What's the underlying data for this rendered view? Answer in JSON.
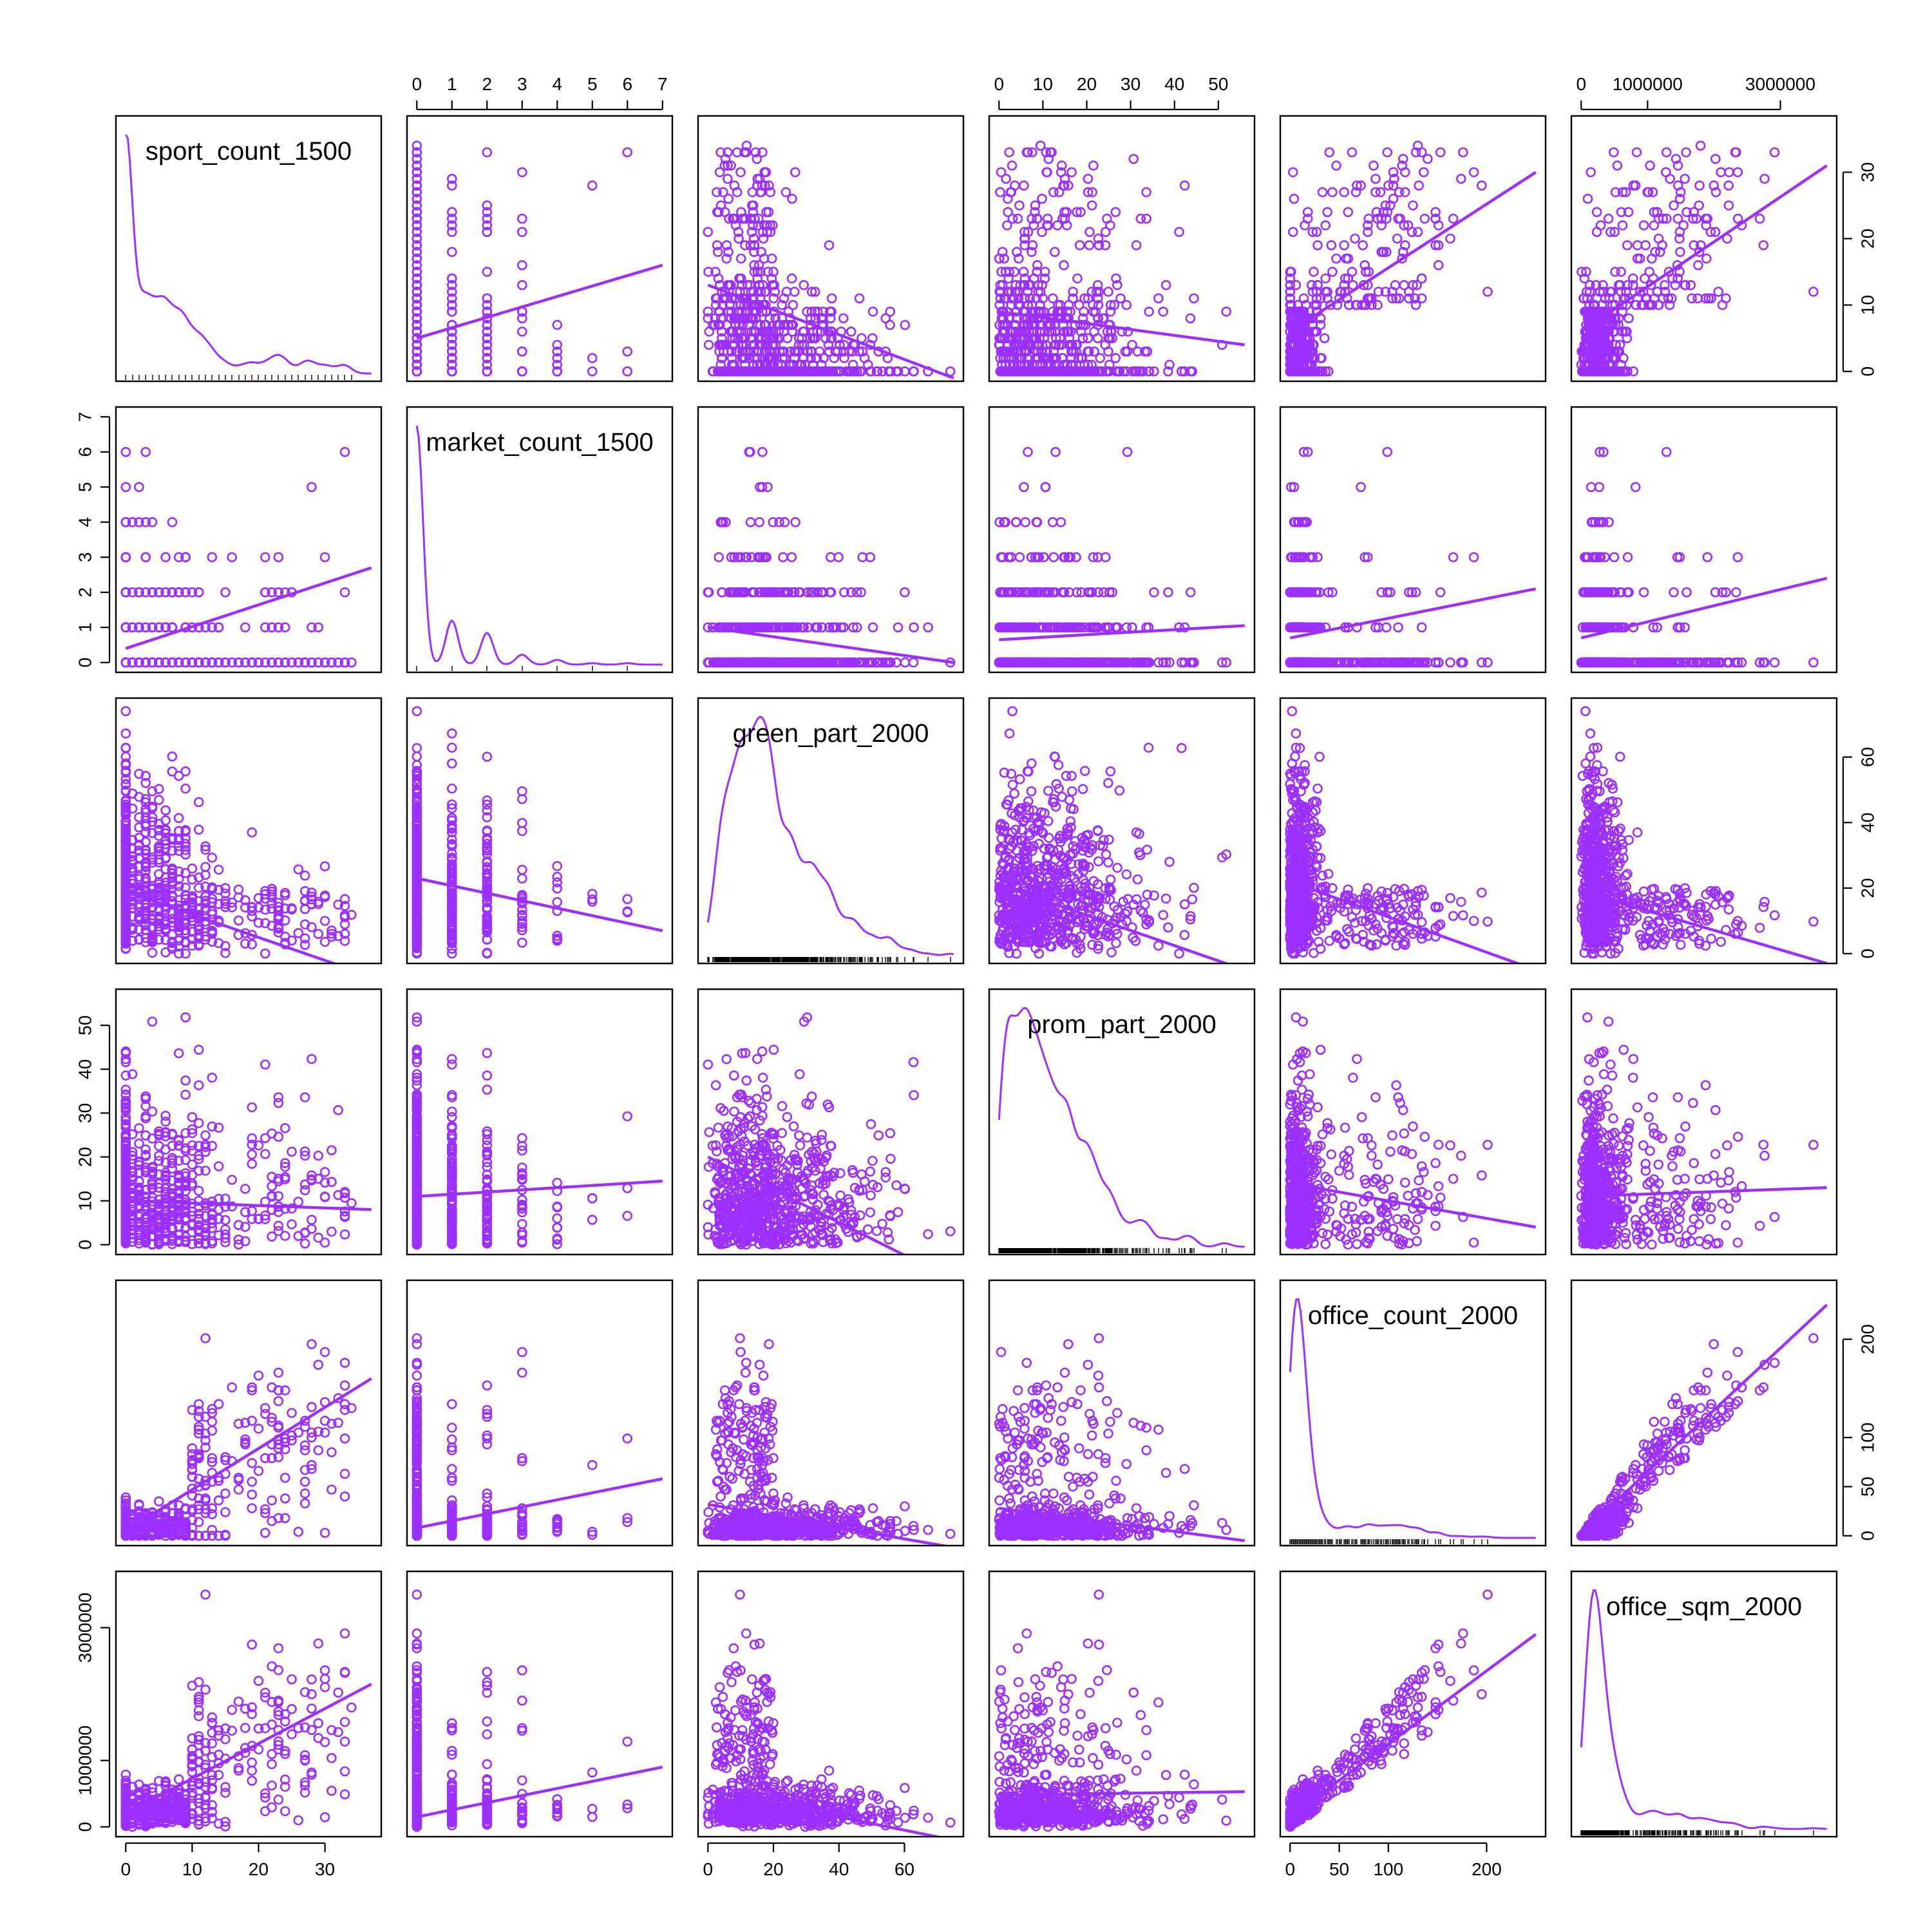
{
  "chart_data": {
    "type": "scatter-matrix",
    "point_color": "#9B30FF",
    "variables": [
      {
        "label": "sport_count_1500",
        "lim": [
          0,
          37
        ],
        "ticks": [
          "0",
          "10",
          "20",
          "30"
        ],
        "tick_values": [
          0,
          10,
          20,
          30
        ]
      },
      {
        "label": "market_count_1500",
        "lim": [
          0,
          7
        ],
        "ticks": [
          "0",
          "1",
          "2",
          "3",
          "4",
          "5",
          "6",
          "7"
        ],
        "tick_values": [
          0,
          1,
          2,
          3,
          4,
          5,
          6,
          7
        ]
      },
      {
        "label": "green_part_2000",
        "lim": [
          0,
          75
        ],
        "ticks": [
          "0",
          "20",
          "40",
          "60"
        ],
        "tick_values": [
          0,
          20,
          40,
          60
        ]
      },
      {
        "label": "prom_part_2000",
        "lim": [
          0,
          56
        ],
        "ticks": [
          "0",
          "10",
          "20",
          "30",
          "40",
          "50"
        ],
        "tick_values": [
          0,
          10,
          20,
          30,
          40,
          50
        ]
      },
      {
        "label": "office_count_2000",
        "lim": [
          0,
          250
        ],
        "ticks": [
          "0",
          "50",
          "100",
          "200"
        ],
        "tick_values": [
          0,
          50,
          100,
          200
        ]
      },
      {
        "label": "office_sqm_2000",
        "lim": [
          0,
          3700000
        ],
        "ticks": [
          "0",
          "1000000",
          "3000000"
        ],
        "tick_values": [
          0,
          1000000,
          3000000
        ]
      }
    ],
    "fit_lines": [
      {
        "x": 0,
        "y": 1,
        "from": [
          0,
          0.4
        ],
        "to": [
          37,
          2.7
        ]
      },
      {
        "x": 0,
        "y": 2,
        "from": [
          0,
          19
        ],
        "to": [
          37,
          -7
        ]
      },
      {
        "x": 0,
        "y": 3,
        "from": [
          0,
          10
        ],
        "to": [
          37,
          8
        ]
      },
      {
        "x": 0,
        "y": 4,
        "from": [
          0,
          5
        ],
        "to": [
          37,
          160
        ]
      },
      {
        "x": 0,
        "y": 5,
        "from": [
          0,
          200000
        ],
        "to": [
          37,
          2150000
        ]
      },
      {
        "x": 1,
        "y": 0,
        "from": [
          0,
          5
        ],
        "to": [
          7,
          16
        ]
      },
      {
        "x": 1,
        "y": 2,
        "from": [
          0,
          23
        ],
        "to": [
          7,
          7
        ]
      },
      {
        "x": 1,
        "y": 3,
        "from": [
          0,
          11
        ],
        "to": [
          7,
          14.5
        ]
      },
      {
        "x": 1,
        "y": 4,
        "from": [
          0,
          8
        ],
        "to": [
          7,
          58
        ]
      },
      {
        "x": 1,
        "y": 5,
        "from": [
          0,
          150000
        ],
        "to": [
          7,
          900000
        ]
      },
      {
        "x": 2,
        "y": 0,
        "from": [
          0,
          13
        ],
        "to": [
          75,
          -1
        ]
      },
      {
        "x": 2,
        "y": 1,
        "from": [
          0,
          1
        ],
        "to": [
          75,
          0
        ]
      },
      {
        "x": 2,
        "y": 3,
        "from": [
          0,
          20
        ],
        "to": [
          75,
          -8
        ]
      },
      {
        "x": 2,
        "y": 4,
        "from": [
          0,
          32
        ],
        "to": [
          75,
          -12
        ]
      },
      {
        "x": 2,
        "y": 5,
        "from": [
          0,
          550000
        ],
        "to": [
          75,
          -200000
        ]
      },
      {
        "x": 3,
        "y": 0,
        "from": [
          0,
          9
        ],
        "to": [
          56,
          4
        ]
      },
      {
        "x": 3,
        "y": 1,
        "from": [
          0,
          0.65
        ],
        "to": [
          56,
          1.05
        ]
      },
      {
        "x": 3,
        "y": 2,
        "from": [
          0,
          21
        ],
        "to": [
          56,
          -5
        ]
      },
      {
        "x": 3,
        "y": 4,
        "from": [
          0,
          28
        ],
        "to": [
          56,
          -5
        ]
      },
      {
        "x": 3,
        "y": 5,
        "from": [
          0,
          480000
        ],
        "to": [
          56,
          530000
        ]
      },
      {
        "x": 4,
        "y": 0,
        "from": [
          0,
          6
        ],
        "to": [
          250,
          30
        ]
      },
      {
        "x": 4,
        "y": 1,
        "from": [
          0,
          0.7
        ],
        "to": [
          250,
          2.1
        ]
      },
      {
        "x": 4,
        "y": 2,
        "from": [
          0,
          22
        ],
        "to": [
          250,
          -5
        ]
      },
      {
        "x": 4,
        "y": 3,
        "from": [
          0,
          14
        ],
        "to": [
          250,
          4
        ]
      },
      {
        "x": 4,
        "y": 5,
        "from": [
          0,
          150000
        ],
        "to": [
          250,
          2900000
        ]
      },
      {
        "x": 5,
        "y": 0,
        "from": [
          0,
          6
        ],
        "to": [
          3700000,
          31
        ]
      },
      {
        "x": 5,
        "y": 1,
        "from": [
          0,
          0.7
        ],
        "to": [
          3700000,
          2.4
        ]
      },
      {
        "x": 5,
        "y": 2,
        "from": [
          0,
          19
        ],
        "to": [
          3700000,
          -3
        ]
      },
      {
        "x": 5,
        "y": 3,
        "from": [
          0,
          11
        ],
        "to": [
          3700000,
          13
        ]
      },
      {
        "x": 5,
        "y": 4,
        "from": [
          0,
          2
        ],
        "to": [
          3700000,
          235
        ]
      }
    ]
  }
}
